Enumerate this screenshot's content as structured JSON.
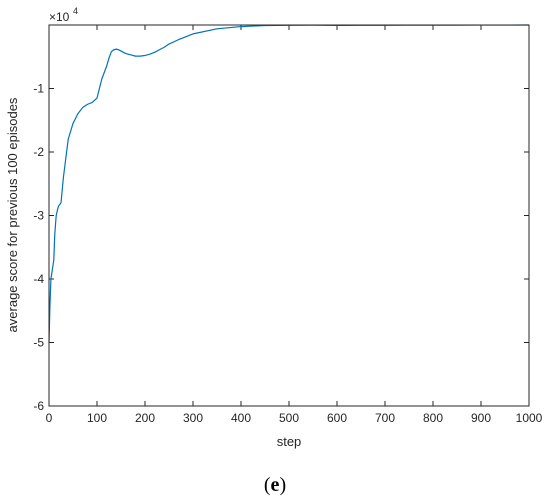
{
  "chart_data": {
    "type": "line",
    "xlabel": "step",
    "ylabel": "average score for previous 100 episodes",
    "y_exponent_label": "×10",
    "y_exponent": "4",
    "xlim": [
      0,
      1000
    ],
    "ylim": [
      -60000,
      0
    ],
    "x_ticks": [
      0,
      100,
      200,
      300,
      400,
      500,
      600,
      700,
      800,
      900,
      1000
    ],
    "y_ticks": [
      -60000,
      -50000,
      -40000,
      -30000,
      -20000,
      -10000
    ],
    "y_tick_labels": [
      "-6",
      "-5",
      "-4",
      "-3",
      "-2",
      "-1"
    ],
    "line_color": "#0072BD",
    "grid": false,
    "series": [
      {
        "x": [
          0,
          2,
          4,
          6,
          8,
          10,
          12,
          15,
          18,
          20,
          25,
          30,
          35,
          40,
          50,
          60,
          70,
          80,
          90,
          100,
          105,
          110,
          115,
          120,
          125,
          130,
          135,
          140,
          145,
          150,
          160,
          170,
          180,
          190,
          200,
          210,
          220,
          230,
          240,
          250,
          270,
          300,
          350,
          400,
          450,
          500,
          550,
          600,
          650,
          700,
          750,
          800,
          850,
          900,
          950,
          1000
        ],
        "y": [
          -50000,
          -44000,
          -40000,
          -39000,
          -38000,
          -37000,
          -33000,
          -30000,
          -29000,
          -28500,
          -28000,
          -24000,
          -21000,
          -18000,
          -15500,
          -14000,
          -13000,
          -12500,
          -12200,
          -11500,
          -10000,
          -8500,
          -7500,
          -6500,
          -5200,
          -4200,
          -3900,
          -3800,
          -3900,
          -4100,
          -4500,
          -4700,
          -4900,
          -4900,
          -4800,
          -4600,
          -4300,
          -3900,
          -3500,
          -3000,
          -2300,
          -1400,
          -600,
          -250,
          -80,
          -50,
          -30,
          -60,
          -40,
          -50,
          -20,
          -30,
          -20,
          -10,
          -10,
          0
        ]
      }
    ]
  },
  "caption": {
    "open": "(",
    "letter": "e",
    "close": ")"
  }
}
